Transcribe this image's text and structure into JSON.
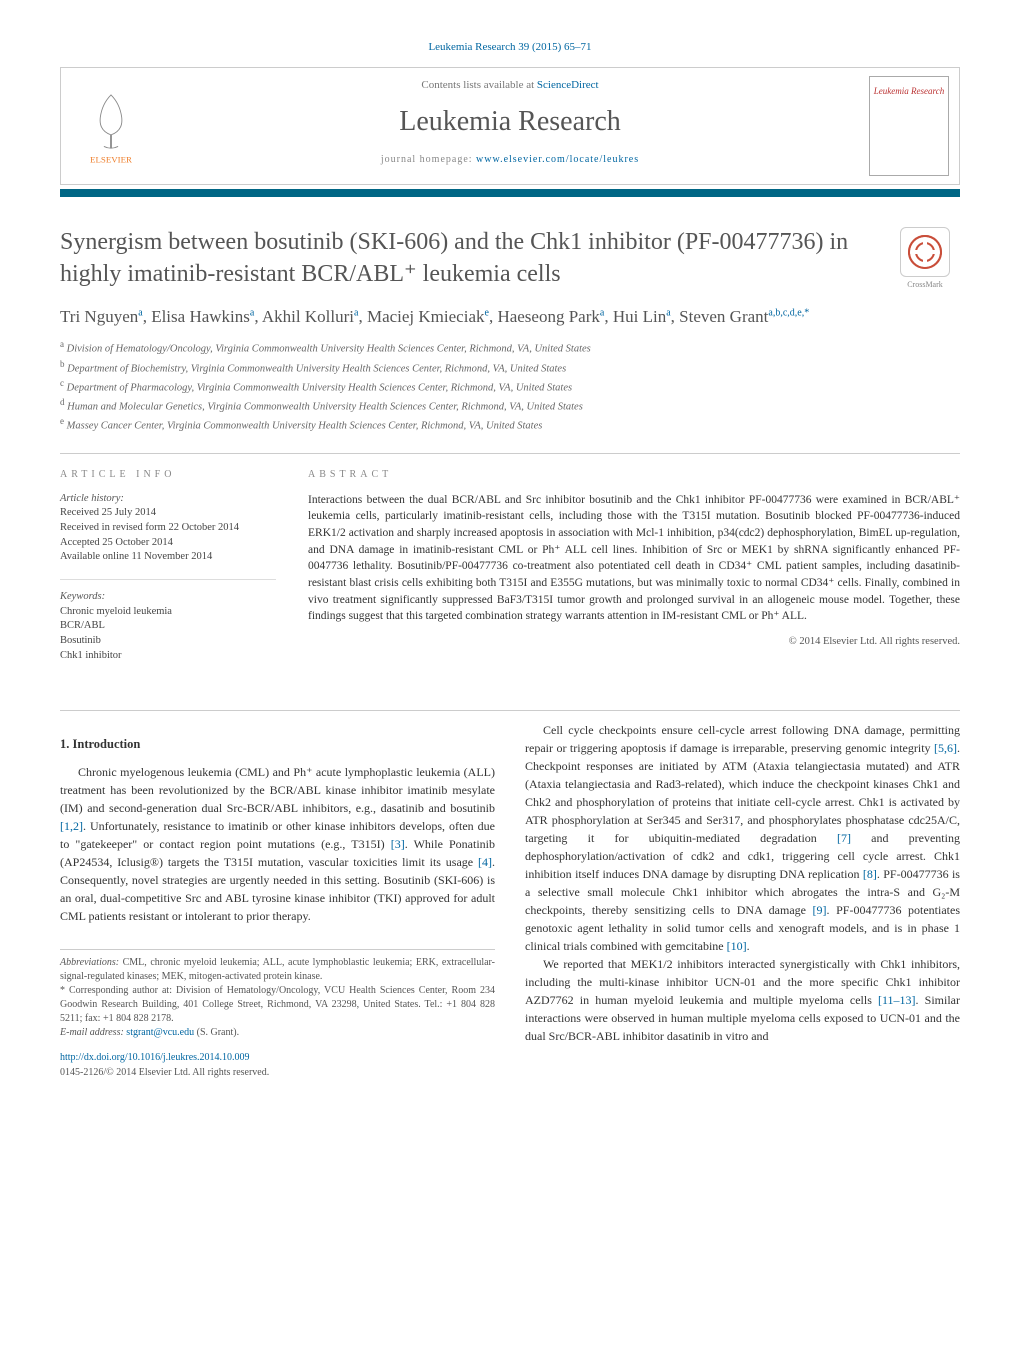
{
  "journal_ref": "Leukemia Research 39 (2015) 65–71",
  "header": {
    "contents_prefix": "Contents lists available at ",
    "contents_link": "ScienceDirect",
    "journal_name": "Leukemia Research",
    "homepage_prefix": "journal homepage: ",
    "homepage_link": "www.elsevier.com/locate/leukres",
    "cover_title": "Leukemia Research",
    "publisher_logo_text": "ELSEVIER"
  },
  "crossmark_label": "CrossMark",
  "article_title": "Synergism between bosutinib (SKI-606) and the Chk1 inhibitor (PF-00477736) in highly imatinib-resistant BCR/ABL⁺ leukemia cells",
  "authors_html": "Tri Nguyen<sup>a</sup>, Elisa Hawkins<sup>a</sup>, Akhil Kolluri<sup>a</sup>, Maciej Kmieciak<sup>e</sup>, Haeseong Park<sup>a</sup>, Hui Lin<sup>a</sup>, Steven Grant<sup>a,b,c,d,e,*</sup>",
  "affiliations": [
    {
      "sup": "a",
      "text": "Division of Hematology/Oncology, Virginia Commonwealth University Health Sciences Center, Richmond, VA, United States"
    },
    {
      "sup": "b",
      "text": "Department of Biochemistry, Virginia Commonwealth University Health Sciences Center, Richmond, VA, United States"
    },
    {
      "sup": "c",
      "text": "Department of Pharmacology, Virginia Commonwealth University Health Sciences Center, Richmond, VA, United States"
    },
    {
      "sup": "d",
      "text": "Human and Molecular Genetics, Virginia Commonwealth University Health Sciences Center, Richmond, VA, United States"
    },
    {
      "sup": "e",
      "text": "Massey Cancer Center, Virginia Commonwealth University Health Sciences Center, Richmond, VA, United States"
    }
  ],
  "info": {
    "heading_info": "article info",
    "heading_abstract": "abstract",
    "history_label": "Article history:",
    "history": [
      "Received 25 July 2014",
      "Received in revised form 22 October 2014",
      "Accepted 25 October 2014",
      "Available online 11 November 2014"
    ],
    "keywords_label": "Keywords:",
    "keywords": [
      "Chronic myeloid leukemia",
      "BCR/ABL",
      "Bosutinib",
      "Chk1 inhibitor"
    ]
  },
  "abstract": "Interactions between the dual BCR/ABL and Src inhibitor bosutinib and the Chk1 inhibitor PF-00477736 were examined in BCR/ABL⁺ leukemia cells, particularly imatinib-resistant cells, including those with the T315I mutation. Bosutinib blocked PF-00477736-induced ERK1/2 activation and sharply increased apoptosis in association with Mcl-1 inhibition, p34(cdc2) dephosphorylation, BimEL up-regulation, and DNA damage in imatinib-resistant CML or Ph⁺ ALL cell lines. Inhibition of Src or MEK1 by shRNA significantly enhanced PF-0047736 lethality. Bosutinib/PF-00477736 co-treatment also potentiated cell death in CD34⁺ CML patient samples, including dasatinib-resistant blast crisis cells exhibiting both T315I and E355G mutations, but was minimally toxic to normal CD34⁺ cells. Finally, combined in vivo treatment significantly suppressed BaF3/T315I tumor growth and prolonged survival in an allogeneic mouse model. Together, these findings suggest that this targeted combination strategy warrants attention in IM-resistant CML or Ph⁺ ALL.",
  "copyright": "© 2014 Elsevier Ltd. All rights reserved.",
  "body": {
    "section1_heading": "1. Introduction",
    "left_paras": [
      "Chronic myelogenous leukemia (CML) and Ph⁺ acute lymphoplastic leukemia (ALL) treatment has been revolutionized by the BCR/ABL kinase inhibitor imatinib mesylate (IM) and second-generation dual Src-BCR/ABL inhibitors, e.g., dasatinib and bosutinib [1,2]. Unfortunately, resistance to imatinib or other kinase inhibitors develops, often due to \"gatekeeper\" or contact region point mutations (e.g., T315I) [3]. While Ponatinib (AP24534, Iclusig®) targets the T315I mutation, vascular toxicities limit its usage [4]. Consequently, novel strategies are urgently needed in this setting. Bosutinib (SKI-606) is an oral, dual-competitive Src and ABL tyrosine kinase inhibitor (TKI) approved for adult CML patients resistant or intolerant to prior therapy."
    ],
    "right_paras": [
      "Cell cycle checkpoints ensure cell-cycle arrest following DNA damage, permitting repair or triggering apoptosis if damage is irreparable, preserving genomic integrity [5,6]. Checkpoint responses are initiated by ATM (Ataxia telangiectasia mutated) and ATR (Ataxia telangiectasia and Rad3-related), which induce the checkpoint kinases Chk1 and Chk2 and phosphorylation of proteins that initiate cell-cycle arrest. Chk1 is activated by ATR phosphorylation at Ser345 and Ser317, and phosphorylates phosphatase cdc25A/C, targeting it for ubiquitin-mediated degradation [7] and preventing dephosphorylation/activation of cdk2 and cdk1, triggering cell cycle arrest. Chk1 inhibition itself induces DNA damage by disrupting DNA replication [8]. PF-00477736 is a selective small molecule Chk1 inhibitor which abrogates the intra-S and G₂-M checkpoints, thereby sensitizing cells to DNA damage [9]. PF-00477736 potentiates genotoxic agent lethality in solid tumor cells and xenograft models, and is in phase 1 clinical trials combined with gemcitabine [10].",
      "We reported that MEK1/2 inhibitors interacted synergistically with Chk1 inhibitors, including the multi-kinase inhibitor UCN-01 and the more specific Chk1 inhibitor AZD7762 in human myeloid leukemia and multiple myeloma cells [11–13]. Similar interactions were observed in human multiple myeloma cells exposed to UCN-01 and the dual Src/BCR-ABL inhibitor dasatinib in vitro and"
    ]
  },
  "footnotes": {
    "abbrev_label": "Abbreviations:",
    "abbrev_text": " CML, chronic myeloid leukemia; ALL, acute lymphoblastic leukemia; ERK, extracellular-signal-regulated kinases; MEK, mitogen-activated protein kinase.",
    "corr_label": "* Corresponding author at: ",
    "corr_text": "Division of Hematology/Oncology, VCU Health Sciences Center, Room 234 Goodwin Research Building, 401 College Street, Richmond, VA 23298, United States. Tel.: +1 804 828 5211; fax: +1 804 828 2178.",
    "email_label": "E-mail address: ",
    "email": "stgrant@vcu.edu",
    "email_suffix": " (S. Grant)."
  },
  "doi": "http://dx.doi.org/10.1016/j.leukres.2014.10.009",
  "issn": "0145-2126/© 2014 Elsevier Ltd. All rights reserved.",
  "refs": {
    "r12": "[1,2]",
    "r3": "[3]",
    "r4": "[4]",
    "r56": "[5,6]",
    "r7": "[7]",
    "r8": "[8]",
    "r9": "[9]",
    "r10": "[10]",
    "r1113": "[11–13]"
  },
  "colors": {
    "brand_bar": "#006685",
    "link": "#0066a1",
    "elsevier_orange": "#ee7f2d",
    "crossmark_circle": "#c94e3a"
  }
}
